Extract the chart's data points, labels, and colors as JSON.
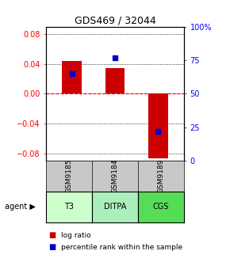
{
  "title": "GDS469 / 32044",
  "samples": [
    "GSM9185",
    "GSM9184",
    "GSM9189"
  ],
  "agents": [
    "T3",
    "DITPA",
    "CGS"
  ],
  "log_ratios": [
    0.044,
    0.034,
    -0.086
  ],
  "percentile_ranks": [
    0.65,
    0.77,
    0.22
  ],
  "ylim": [
    -0.09,
    0.09
  ],
  "y_ticks_left": [
    -0.08,
    -0.04,
    0,
    0.04,
    0.08
  ],
  "y_ticks_right": [
    0,
    25,
    50,
    75,
    100
  ],
  "bar_color": "#cc0000",
  "dot_color": "#0000cc",
  "gsm_bg": "#c8c8c8",
  "agent_bg_colors": [
    "#ccffcc",
    "#aaeebb",
    "#55dd55"
  ],
  "zero_line_color": "#dd0000",
  "background_color": "#ffffff"
}
